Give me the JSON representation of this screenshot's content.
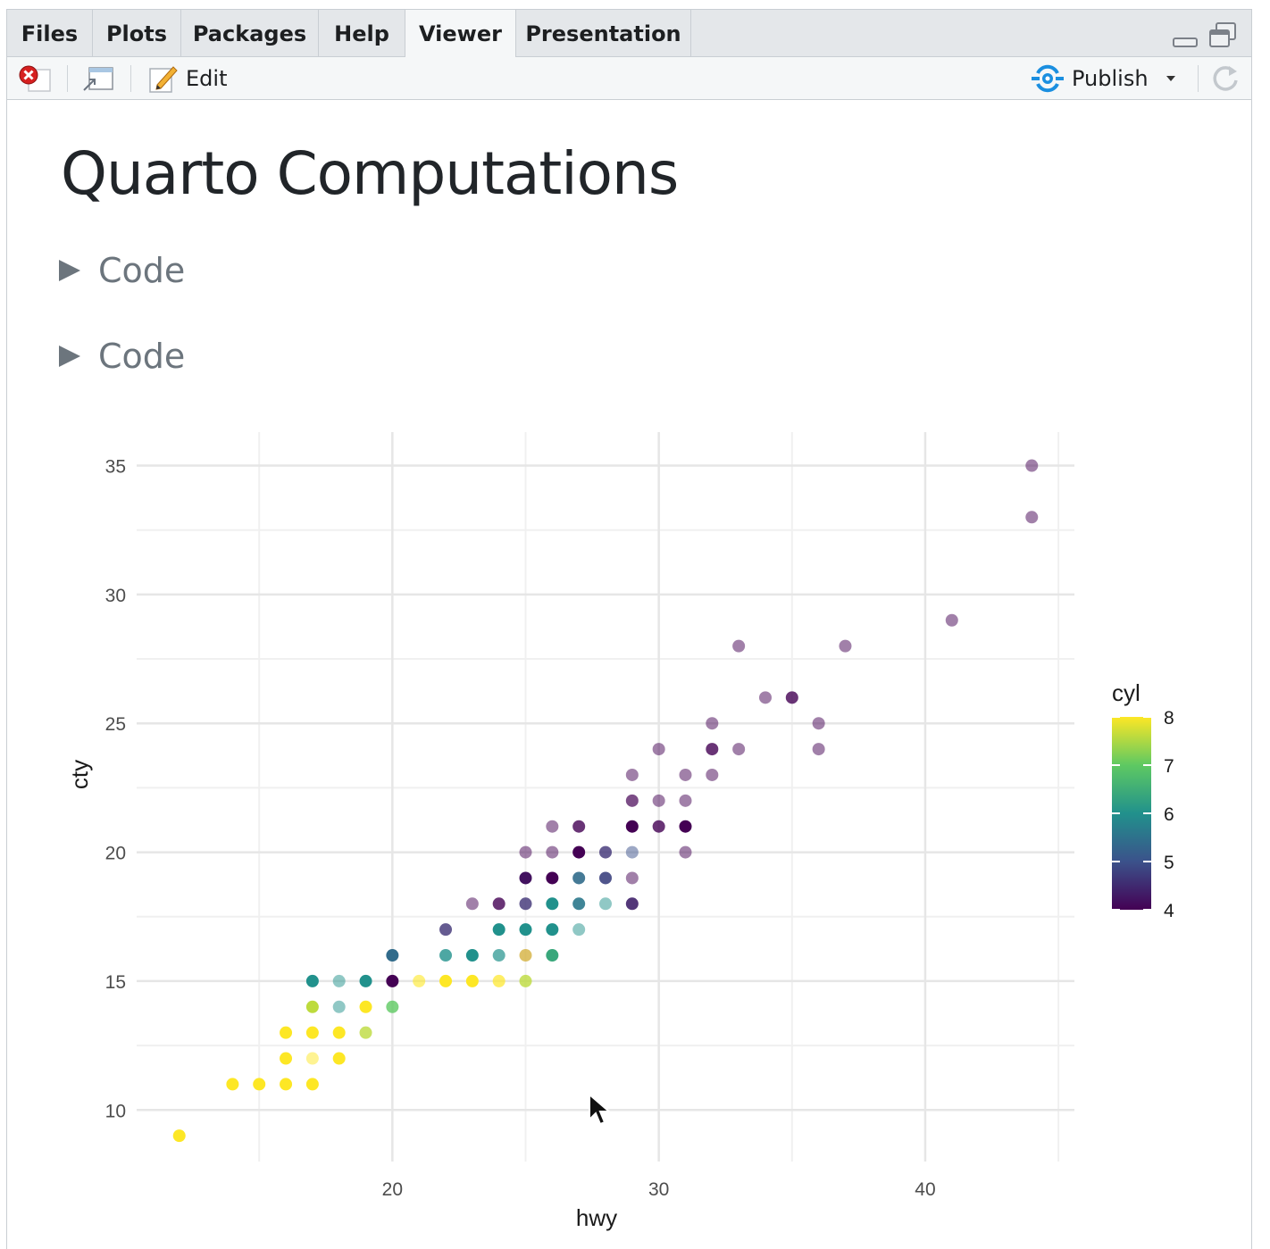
{
  "tabs": [
    {
      "label": "Files",
      "active": false
    },
    {
      "label": "Plots",
      "active": false
    },
    {
      "label": "Packages",
      "active": false
    },
    {
      "label": "Help",
      "active": false
    },
    {
      "label": "Viewer",
      "active": true
    },
    {
      "label": "Presentation",
      "active": false
    }
  ],
  "window_controls": {
    "minimize_icon": "minimize-icon",
    "restore_icon": "restore-icon"
  },
  "toolbar": {
    "stop_icon": "stop-icon",
    "popout_icon": "show-in-new-window-icon",
    "edit_label": "Edit",
    "edit_icon": "edit-pencil-icon",
    "publish_label": "Publish",
    "publish_icon": "publish-icon",
    "publish_dropdown_icon": "caret-down-icon",
    "refresh_icon": "refresh-icon",
    "colors": {
      "publish_blue": "#1b8fe0",
      "stop_red": "#d62020"
    }
  },
  "document": {
    "title": "Quarto Computations",
    "code_folds": [
      {
        "label": "Code"
      },
      {
        "label": "Code"
      }
    ]
  },
  "chart_data": {
    "type": "scatter",
    "title": "",
    "xlabel": "hwy",
    "ylabel": "cty",
    "xlim": [
      10.4,
      45.6
    ],
    "ylim": [
      8.0,
      36.3
    ],
    "x_ticks": [
      20,
      30,
      40
    ],
    "y_ticks": [
      10,
      15,
      20,
      25,
      30,
      35
    ],
    "grid": true,
    "legend": {
      "title": "cyl",
      "type": "colorbar",
      "position": "right",
      "ticks": [
        4,
        5,
        6,
        7,
        8
      ],
      "palette": "viridis"
    },
    "color_scale": {
      "min": 4,
      "max": 8,
      "stops": [
        "#440154",
        "#3b528b",
        "#21918c",
        "#5ec962",
        "#fde725"
      ]
    },
    "points": [
      {
        "x": 44,
        "y": 35,
        "cyl": 4,
        "alpha": 0.5
      },
      {
        "x": 44,
        "y": 33,
        "cyl": 4,
        "alpha": 0.5
      },
      {
        "x": 41,
        "y": 29,
        "cyl": 4,
        "alpha": 0.5
      },
      {
        "x": 33,
        "y": 28,
        "cyl": 4,
        "alpha": 0.5
      },
      {
        "x": 37,
        "y": 28,
        "cyl": 4,
        "alpha": 0.5
      },
      {
        "x": 34,
        "y": 26,
        "cyl": 4,
        "alpha": 0.5
      },
      {
        "x": 35,
        "y": 26,
        "cyl": 4,
        "alpha": 0.8
      },
      {
        "x": 32,
        "y": 25,
        "cyl": 4,
        "alpha": 0.5
      },
      {
        "x": 36,
        "y": 25,
        "cyl": 4,
        "alpha": 0.5
      },
      {
        "x": 30,
        "y": 24,
        "cyl": 4,
        "alpha": 0.5
      },
      {
        "x": 32,
        "y": 24,
        "cyl": 4,
        "alpha": 0.8
      },
      {
        "x": 33,
        "y": 24,
        "cyl": 4,
        "alpha": 0.5
      },
      {
        "x": 36,
        "y": 24,
        "cyl": 4,
        "alpha": 0.5
      },
      {
        "x": 29,
        "y": 23,
        "cyl": 4,
        "alpha": 0.5
      },
      {
        "x": 31,
        "y": 23,
        "cyl": 4,
        "alpha": 0.5
      },
      {
        "x": 32,
        "y": 23,
        "cyl": 4,
        "alpha": 0.5
      },
      {
        "x": 29,
        "y": 22,
        "cyl": 4,
        "alpha": 0.7
      },
      {
        "x": 30,
        "y": 22,
        "cyl": 4,
        "alpha": 0.5
      },
      {
        "x": 31,
        "y": 22,
        "cyl": 4,
        "alpha": 0.5
      },
      {
        "x": 26,
        "y": 21,
        "cyl": 4,
        "alpha": 0.5
      },
      {
        "x": 27,
        "y": 21,
        "cyl": 4,
        "alpha": 0.8
      },
      {
        "x": 29,
        "y": 21,
        "cyl": 4,
        "alpha": 1
      },
      {
        "x": 30,
        "y": 21,
        "cyl": 4,
        "alpha": 0.8
      },
      {
        "x": 31,
        "y": 21,
        "cyl": 4,
        "alpha": 1
      },
      {
        "x": 25,
        "y": 20,
        "cyl": 4,
        "alpha": 0.5
      },
      {
        "x": 26,
        "y": 20,
        "cyl": 4,
        "alpha": 0.5
      },
      {
        "x": 27,
        "y": 20,
        "cyl": 4,
        "alpha": 1
      },
      {
        "x": 28,
        "y": 20,
        "cyl": 4.6,
        "alpha": 0.8
      },
      {
        "x": 29,
        "y": 20,
        "cyl": 5,
        "alpha": 0.5
      },
      {
        "x": 31,
        "y": 20,
        "cyl": 4,
        "alpha": 0.5
      },
      {
        "x": 25,
        "y": 19,
        "cyl": 4.2,
        "alpha": 1
      },
      {
        "x": 26,
        "y": 19,
        "cyl": 4,
        "alpha": 1
      },
      {
        "x": 27,
        "y": 19,
        "cyl": 5.4,
        "alpha": 0.9
      },
      {
        "x": 28,
        "y": 19,
        "cyl": 4.8,
        "alpha": 0.9
      },
      {
        "x": 29,
        "y": 19,
        "cyl": 4,
        "alpha": 0.5
      },
      {
        "x": 23,
        "y": 18,
        "cyl": 4,
        "alpha": 0.5
      },
      {
        "x": 24,
        "y": 18,
        "cyl": 4,
        "alpha": 0.8
      },
      {
        "x": 25,
        "y": 18,
        "cyl": 4.6,
        "alpha": 0.8
      },
      {
        "x": 26,
        "y": 18,
        "cyl": 6,
        "alpha": 1
      },
      {
        "x": 27,
        "y": 18,
        "cyl": 5.6,
        "alpha": 0.9
      },
      {
        "x": 28,
        "y": 18,
        "cyl": 6,
        "alpha": 0.5
      },
      {
        "x": 29,
        "y": 18,
        "cyl": 4.4,
        "alpha": 0.9
      },
      {
        "x": 22,
        "y": 17,
        "cyl": 4.6,
        "alpha": 0.8
      },
      {
        "x": 24,
        "y": 17,
        "cyl": 6,
        "alpha": 1
      },
      {
        "x": 25,
        "y": 17,
        "cyl": 6,
        "alpha": 1
      },
      {
        "x": 26,
        "y": 17,
        "cyl": 6,
        "alpha": 1
      },
      {
        "x": 27,
        "y": 17,
        "cyl": 6,
        "alpha": 0.5
      },
      {
        "x": 20,
        "y": 16,
        "cyl": 5.4,
        "alpha": 1
      },
      {
        "x": 22,
        "y": 16,
        "cyl": 6,
        "alpha": 0.8
      },
      {
        "x": 23,
        "y": 16,
        "cyl": 6,
        "alpha": 1
      },
      {
        "x": 24,
        "y": 16,
        "cyl": 6,
        "alpha": 0.7
      },
      {
        "x": 25,
        "y": 16,
        "cyl": 8,
        "alpha": 0.8,
        "color": "#d4b240"
      },
      {
        "x": 26,
        "y": 16,
        "cyl": 6.4,
        "alpha": 1
      },
      {
        "x": 17,
        "y": 15,
        "cyl": 6,
        "alpha": 1
      },
      {
        "x": 18,
        "y": 15,
        "cyl": 6,
        "alpha": 0.5
      },
      {
        "x": 19,
        "y": 15,
        "cyl": 6,
        "alpha": 1
      },
      {
        "x": 20,
        "y": 15,
        "cyl": 4,
        "alpha": 1
      },
      {
        "x": 21,
        "y": 15,
        "cyl": 8,
        "alpha": 0.6
      },
      {
        "x": 22,
        "y": 15,
        "cyl": 8,
        "alpha": 1
      },
      {
        "x": 23,
        "y": 15,
        "cyl": 8,
        "alpha": 1
      },
      {
        "x": 24,
        "y": 15,
        "cyl": 8,
        "alpha": 0.7
      },
      {
        "x": 25,
        "y": 15,
        "cyl": 7.6,
        "alpha": 0.8
      },
      {
        "x": 17,
        "y": 14,
        "cyl": 7.6,
        "alpha": 1
      },
      {
        "x": 18,
        "y": 14,
        "cyl": 6,
        "alpha": 0.5
      },
      {
        "x": 19,
        "y": 14,
        "cyl": 8,
        "alpha": 1
      },
      {
        "x": 20,
        "y": 14,
        "cyl": 7,
        "alpha": 0.8
      },
      {
        "x": 16,
        "y": 13,
        "cyl": 8,
        "alpha": 1
      },
      {
        "x": 17,
        "y": 13,
        "cyl": 8,
        "alpha": 1
      },
      {
        "x": 18,
        "y": 13,
        "cyl": 8,
        "alpha": 1
      },
      {
        "x": 19,
        "y": 13,
        "cyl": 7.6,
        "alpha": 0.8
      },
      {
        "x": 16,
        "y": 12,
        "cyl": 8,
        "alpha": 1
      },
      {
        "x": 17,
        "y": 12,
        "cyl": 8,
        "alpha": 0.5
      },
      {
        "x": 18,
        "y": 12,
        "cyl": 8,
        "alpha": 1
      },
      {
        "x": 14,
        "y": 11,
        "cyl": 8,
        "alpha": 1
      },
      {
        "x": 15,
        "y": 11,
        "cyl": 8,
        "alpha": 1
      },
      {
        "x": 16,
        "y": 11,
        "cyl": 8,
        "alpha": 1
      },
      {
        "x": 17,
        "y": 11,
        "cyl": 8,
        "alpha": 1
      },
      {
        "x": 12,
        "y": 9,
        "cyl": 8,
        "alpha": 1
      }
    ]
  }
}
